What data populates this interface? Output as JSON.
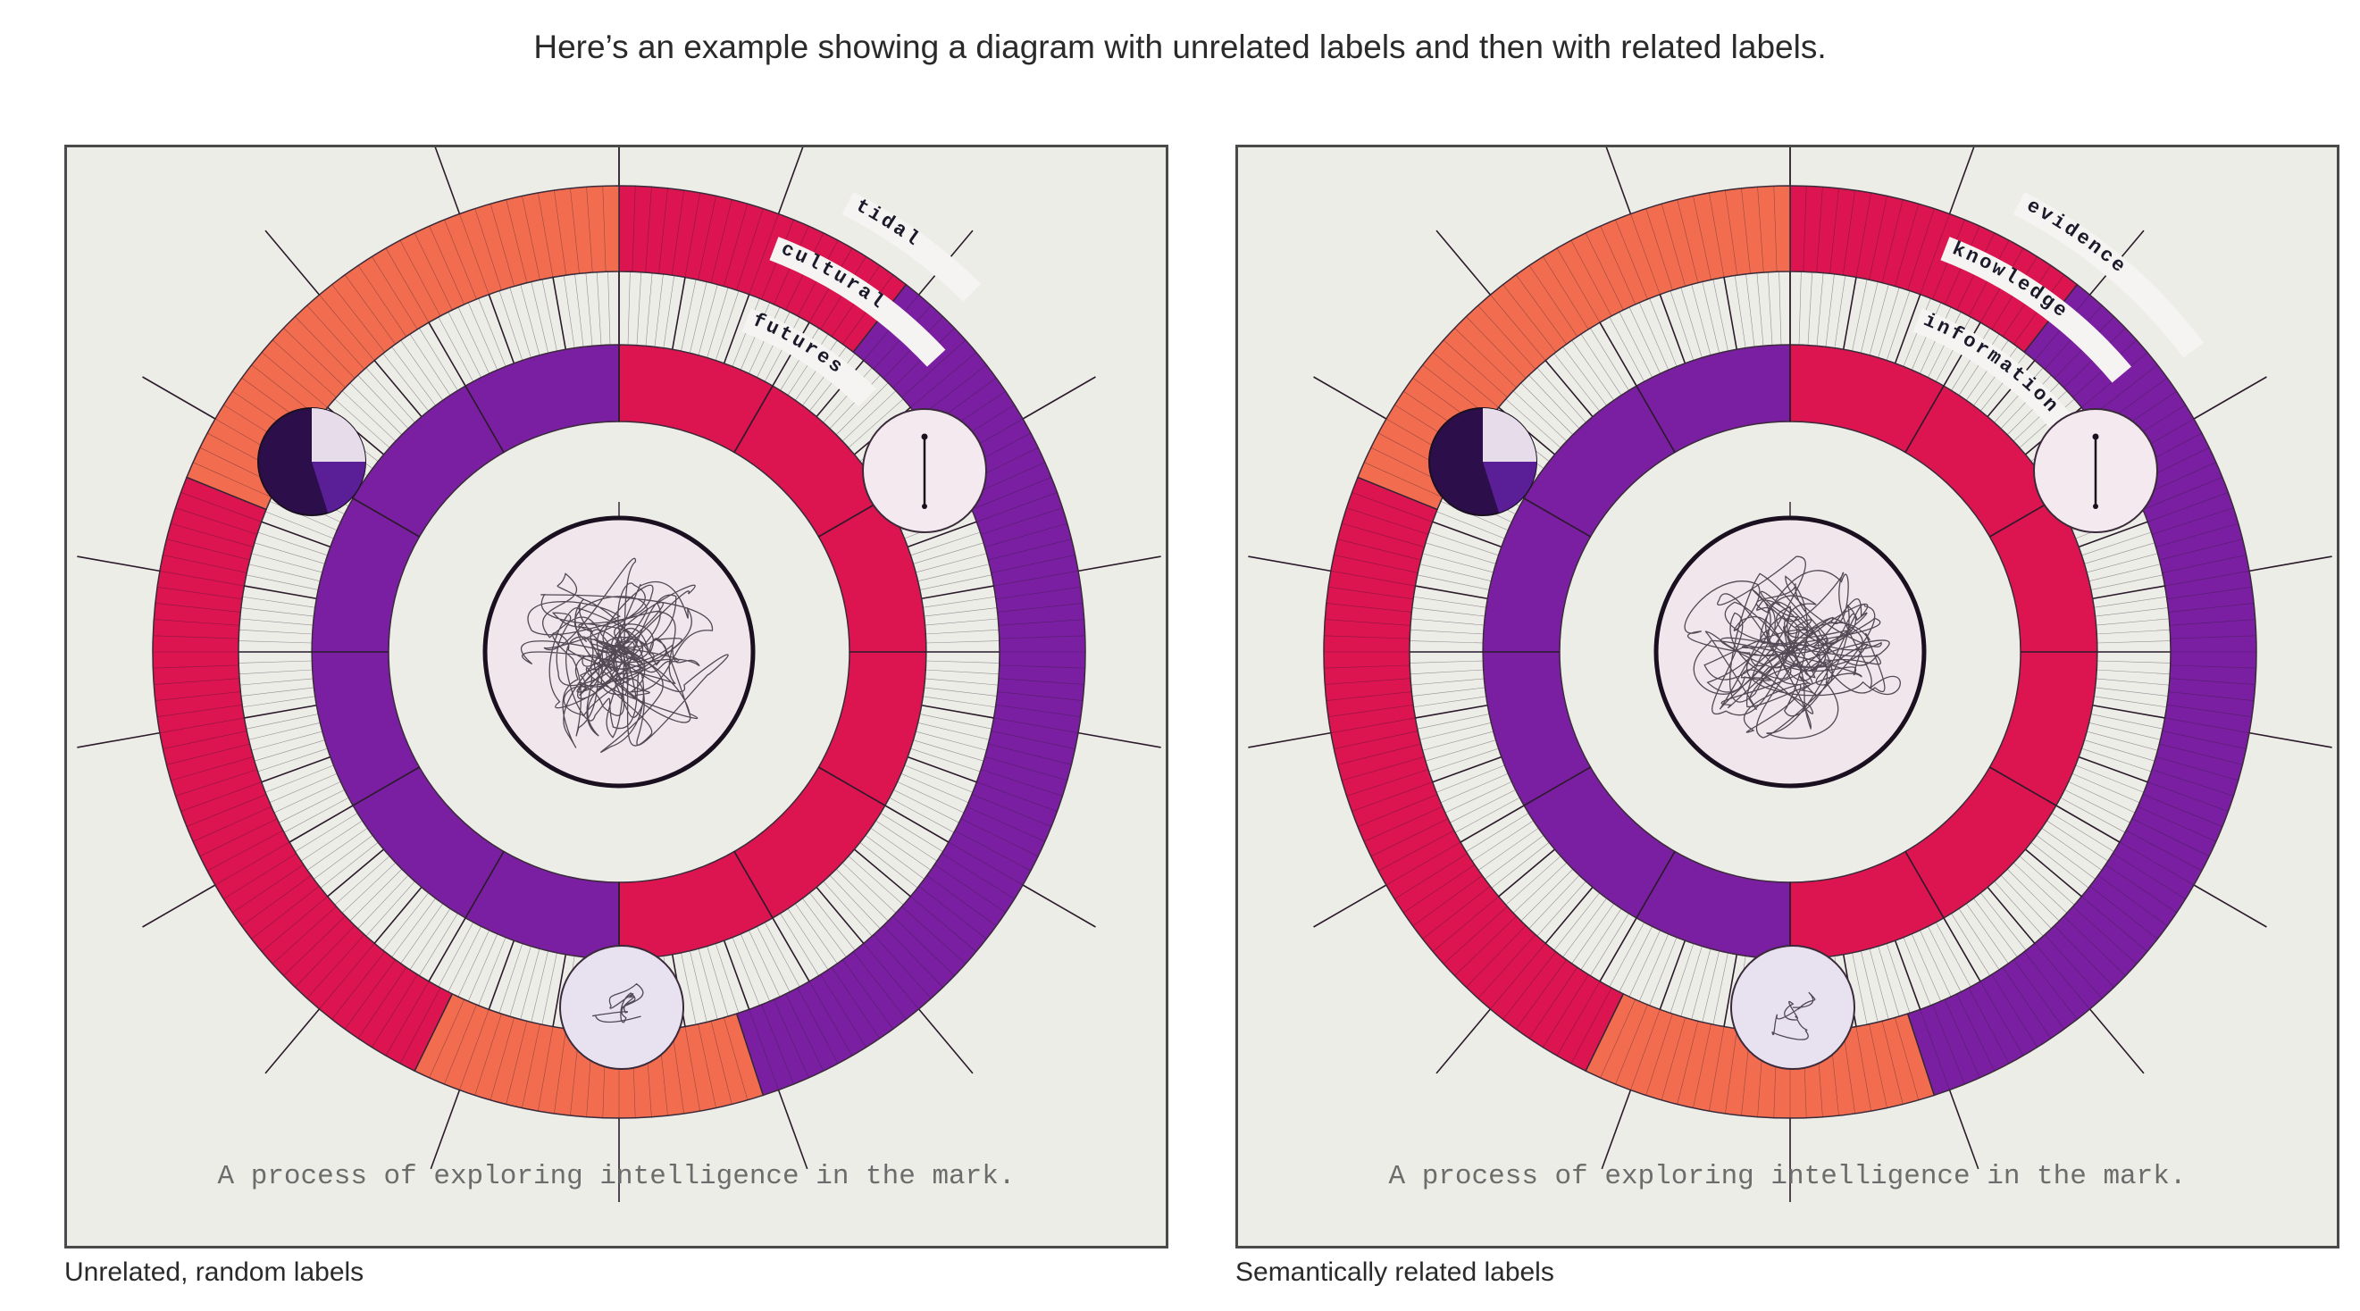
{
  "heading": "Here’s an example showing a diagram with unrelated labels and then with related labels.",
  "panels": [
    {
      "labels": [
        "tidal",
        "cultural",
        "futures"
      ],
      "tagline": "A process of exploring intelligence in the mark.",
      "caption": "Unrelated, random labels"
    },
    {
      "labels": [
        "evidence",
        "knowledge",
        "information"
      ],
      "tagline": "A process of exploring intelligence in the mark.",
      "caption": "Semantically related labels"
    }
  ],
  "colors": {
    "background": "#ededE8",
    "outer_ring": "#f0ead6",
    "orange": "#f26d4f",
    "crimson": "#dc1450",
    "purple": "#7a1fa2",
    "lavender": "#b99ad6",
    "deep_purple": "#2c0f4a",
    "center": "#f0e6ec"
  }
}
